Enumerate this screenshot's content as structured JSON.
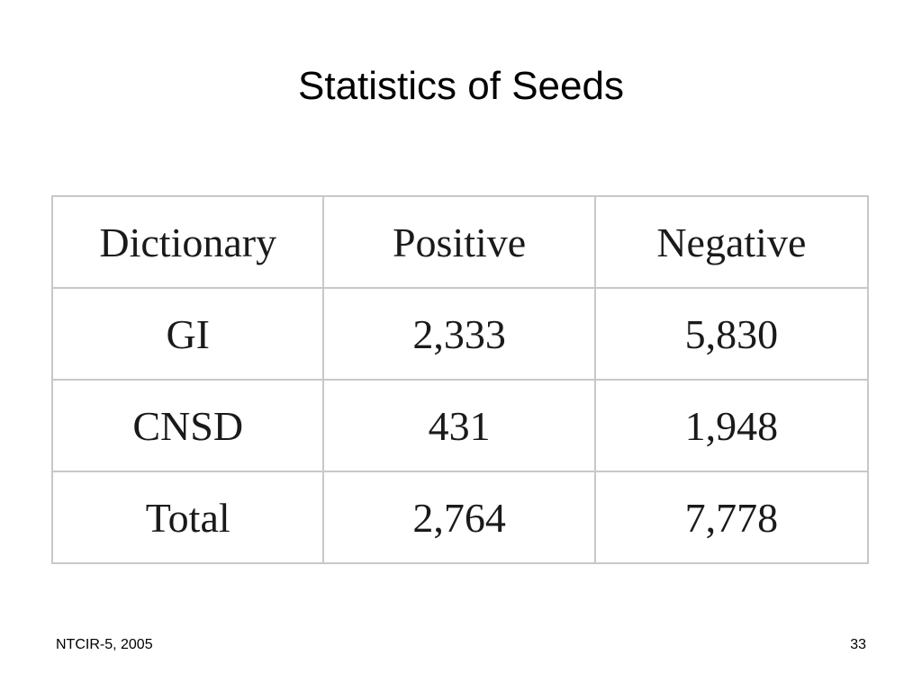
{
  "slide": {
    "title": "Statistics of Seeds",
    "footer_left": "NTCIR-5, 2005",
    "page_number": "33"
  },
  "table": {
    "headers": [
      "Dictionary",
      "Positive",
      "Negative"
    ],
    "rows": [
      [
        "GI",
        "2,333",
        "5,830"
      ],
      [
        "CNSD",
        "431",
        "1,948"
      ],
      [
        "Total",
        "2,764",
        "7,778"
      ]
    ]
  },
  "colors": {
    "background": "#ffffff",
    "text": "#000000",
    "table_border": "#c8c8c8"
  }
}
